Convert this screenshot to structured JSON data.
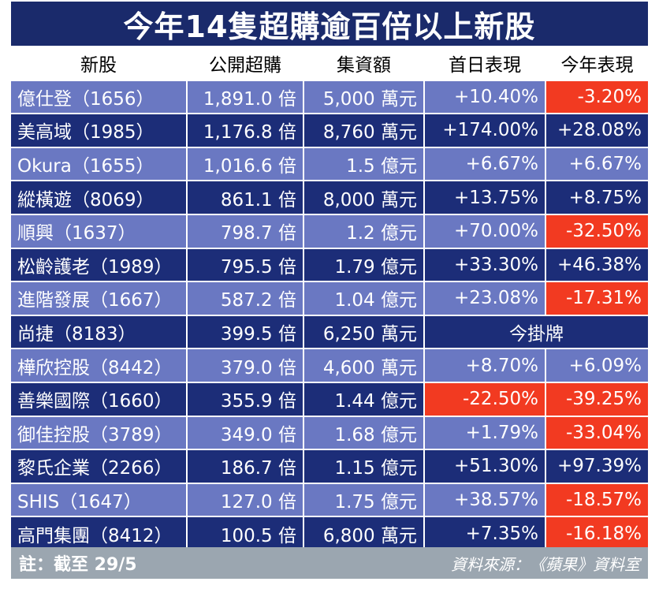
{
  "title": "今年14隻超購逾百倍以上新股",
  "headers": [
    "新股",
    "公開超購",
    "集資額",
    "首日表現",
    "今年表現"
  ],
  "rows": [
    {
      "name": "億仕登（1656）",
      "oversub": "1,891.0 倍",
      "funds": "5,000 萬元",
      "first_day": "+10.40%",
      "ytd": "-3.20%",
      "first_day_neg": false,
      "ytd_neg": true
    },
    {
      "name": "美高域（1985）",
      "oversub": "1,176.8 倍",
      "funds": "8,760 萬元",
      "first_day": "+174.00%",
      "ytd": "+28.08%",
      "first_day_neg": false,
      "ytd_neg": false
    },
    {
      "name": "Okura（1655）",
      "oversub": "1,016.6 倍",
      "funds": "1.5 億元",
      "first_day": "+6.67%",
      "ytd": "+6.67%",
      "first_day_neg": false,
      "ytd_neg": false
    },
    {
      "name": "縱橫遊（8069）",
      "oversub": "861.1 倍",
      "funds": "8,000 萬元",
      "first_day": "+13.75%",
      "ytd": "+8.75%",
      "first_day_neg": false,
      "ytd_neg": false
    },
    {
      "name": "順興（1637）",
      "oversub": "798.7 倍",
      "funds": "1.2 億元",
      "first_day": "+70.00%",
      "ytd": "-32.50%",
      "first_day_neg": false,
      "ytd_neg": true
    },
    {
      "name": "松齡護老（1989）",
      "oversub": "795.5 倍",
      "funds": "1.79 億元",
      "first_day": "+33.30%",
      "ytd": "+46.38%",
      "first_day_neg": false,
      "ytd_neg": false
    },
    {
      "name": "進階發展（1667）",
      "oversub": "587.2 倍",
      "funds": "1.04 億元",
      "first_day": "+23.08%",
      "ytd": "-17.31%",
      "first_day_neg": false,
      "ytd_neg": true
    },
    {
      "name": "尚捷（8183）",
      "oversub": "399.5 倍",
      "funds": "6,250 萬元",
      "merged": "今掛牌"
    },
    {
      "name": "樺欣控股（8442）",
      "oversub": "379.0 倍",
      "funds": "4,600 萬元",
      "first_day": "+8.70%",
      "ytd": "+6.09%",
      "first_day_neg": false,
      "ytd_neg": false
    },
    {
      "name": "善樂國際（1660）",
      "oversub": "355.9 倍",
      "funds": "1.44 億元",
      "first_day": "-22.50%",
      "ytd": "-39.25%",
      "first_day_neg": true,
      "ytd_neg": true
    },
    {
      "name": "御佳控股（3789）",
      "oversub": "349.0 倍",
      "funds": "1.68 億元",
      "first_day": "+1.79%",
      "ytd": "-33.04%",
      "first_day_neg": false,
      "ytd_neg": true
    },
    {
      "name": "黎氏企業（2266）",
      "oversub": "186.7 倍",
      "funds": "1.15 億元",
      "first_day": "+51.30%",
      "ytd": "+97.39%",
      "first_day_neg": false,
      "ytd_neg": false
    },
    {
      "name": "SHIS（1647）",
      "oversub": "127.0 倍",
      "funds": "1.75 億元",
      "first_day": "+38.57%",
      "ytd": "-18.57%",
      "first_day_neg": false,
      "ytd_neg": true
    },
    {
      "name": "高門集團（8412）",
      "oversub": "100.5 倍",
      "funds": "6,800 萬元",
      "first_day": "+7.35%",
      "ytd": "-16.18%",
      "first_day_neg": false,
      "ytd_neg": true
    }
  ],
  "footer": {
    "note": "註：截至 29/5",
    "source": "資料來源：《蘋果》資料室"
  },
  "colors": {
    "title_bg": "#1a2a6b",
    "row_light": "#6a78c2",
    "row_dark": "#1c2d78",
    "negative": "#f23a21",
    "footer_bg": "#9ba6b0"
  }
}
